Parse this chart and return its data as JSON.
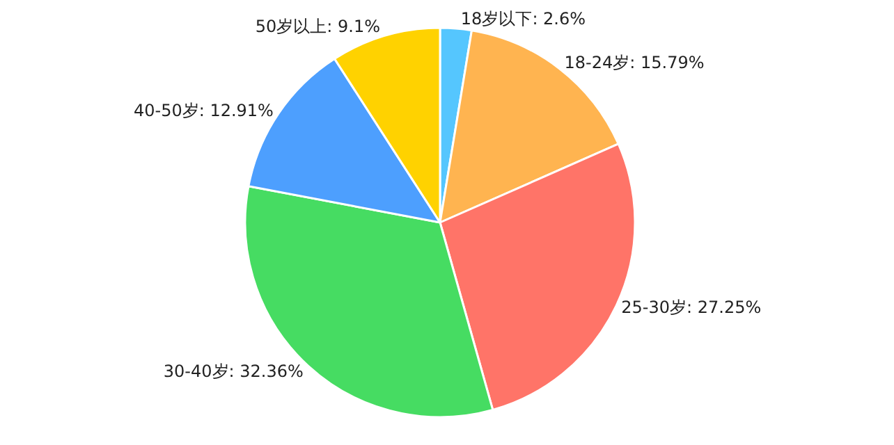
{
  "chart_data": {
    "type": "pie",
    "categories": [
      "18岁以下",
      "18-24岁",
      "25-30岁",
      "30-40岁",
      "40-50岁",
      "50岁以上"
    ],
    "values": [
      2.6,
      15.79,
      27.25,
      32.36,
      12.91,
      9.1
    ],
    "value_labels": [
      "2.6%",
      "15.79%",
      "27.25%",
      "32.36%",
      "12.91%",
      "9.1%"
    ],
    "colors": [
      "#55c6fe",
      "#ffb450",
      "#ff7468",
      "#46dc62",
      "#4d9ffe",
      "#ffd200"
    ],
    "legend": false
  }
}
